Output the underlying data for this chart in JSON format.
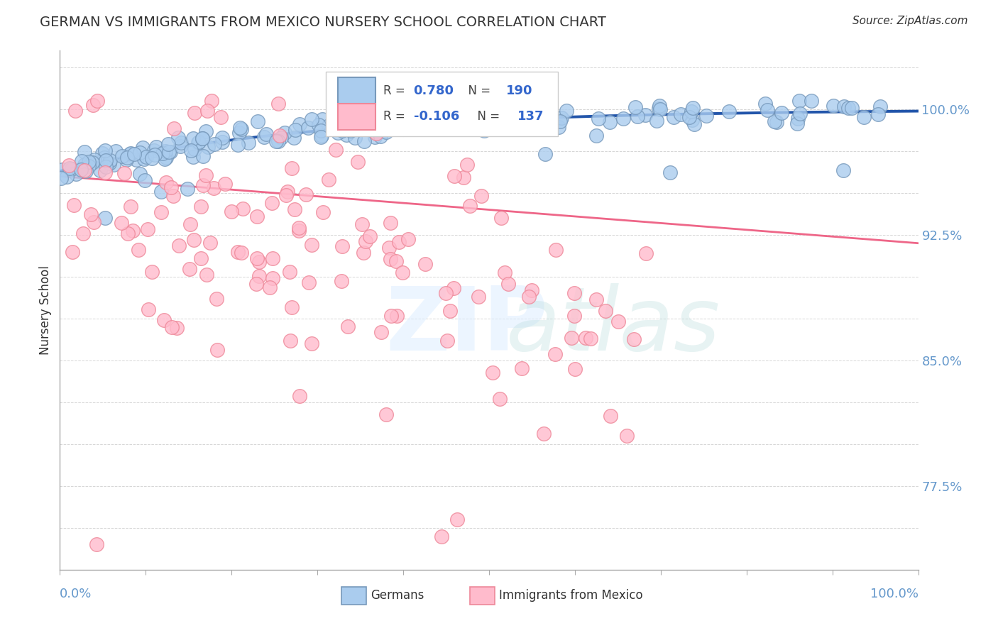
{
  "title": "GERMAN VS IMMIGRANTS FROM MEXICO NURSERY SCHOOL CORRELATION CHART",
  "source": "Source: ZipAtlas.com",
  "ylabel": "Nursery School",
  "ylim": [
    0.725,
    1.035
  ],
  "xlim": [
    0.0,
    1.0
  ],
  "ytick_positions": [
    0.775,
    0.8,
    0.825,
    0.85,
    0.875,
    0.9,
    0.925,
    0.95,
    0.975,
    1.0
  ],
  "ytick_labels": [
    "77.5%",
    "",
    "",
    "85.0%",
    "",
    "",
    "92.5%",
    "",
    "",
    "100.0%"
  ],
  "blue_face": "#AACCEE",
  "blue_edge": "#7799BB",
  "blue_line": "#2255AA",
  "pink_face": "#FFBBCC",
  "pink_edge": "#EE8899",
  "pink_line": "#EE6688",
  "grid_color": "#CCCCCC",
  "title_color": "#333333",
  "tick_color": "#6699CC",
  "background": "#FFFFFF",
  "legend_r_blue": "0.780",
  "legend_n_blue": "190",
  "legend_r_pink": "-0.106",
  "legend_n_pink": "137",
  "watermark_zip": "ZIP",
  "watermark_atlas": "atlas"
}
